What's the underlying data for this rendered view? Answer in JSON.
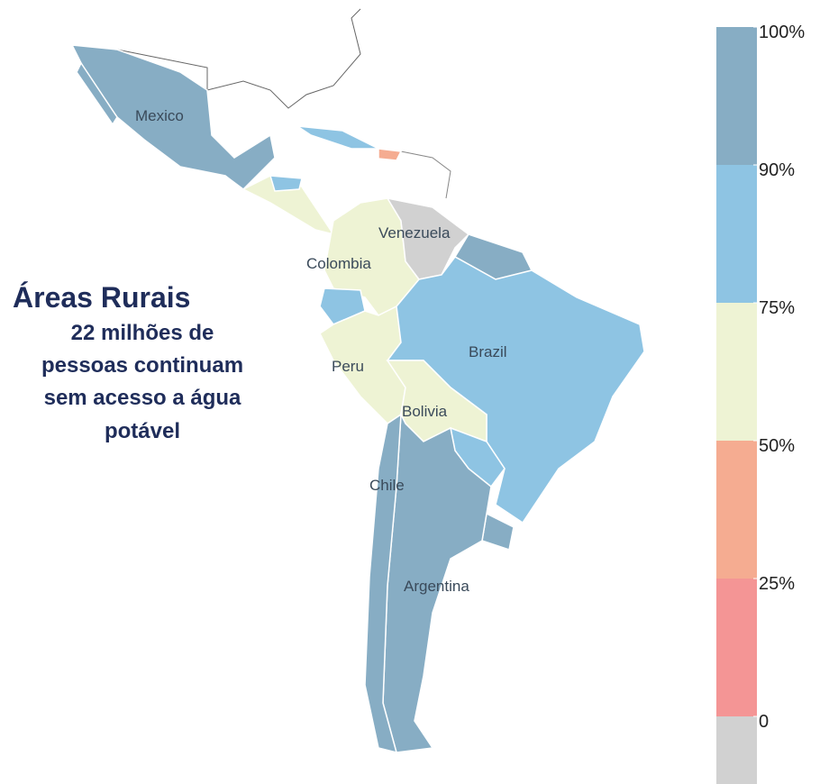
{
  "title": "Áreas Rurais",
  "subtitle": [
    "22 milhões de",
    "pessoas continuam",
    "sem acesso a água",
    "potável"
  ],
  "map": {
    "labels": [
      "Mexico",
      "Venezuela",
      "Colombia",
      "Brazil",
      "Peru",
      "Bolivia",
      "Chile",
      "Argentina"
    ]
  },
  "legend": {
    "ticks": [
      {
        "value": 100,
        "label": "100%"
      },
      {
        "value": 90,
        "label": "90%"
      },
      {
        "value": 75,
        "label": "75%"
      },
      {
        "value": 50,
        "label": "50%"
      },
      {
        "value": 25,
        "label": "25%"
      },
      0
    ],
    "colors": [
      "#87adc4",
      "#8ec4e3",
      "#eef3d4",
      "#f5ac91",
      "#f49595",
      "#d1d1d1"
    ]
  }
}
